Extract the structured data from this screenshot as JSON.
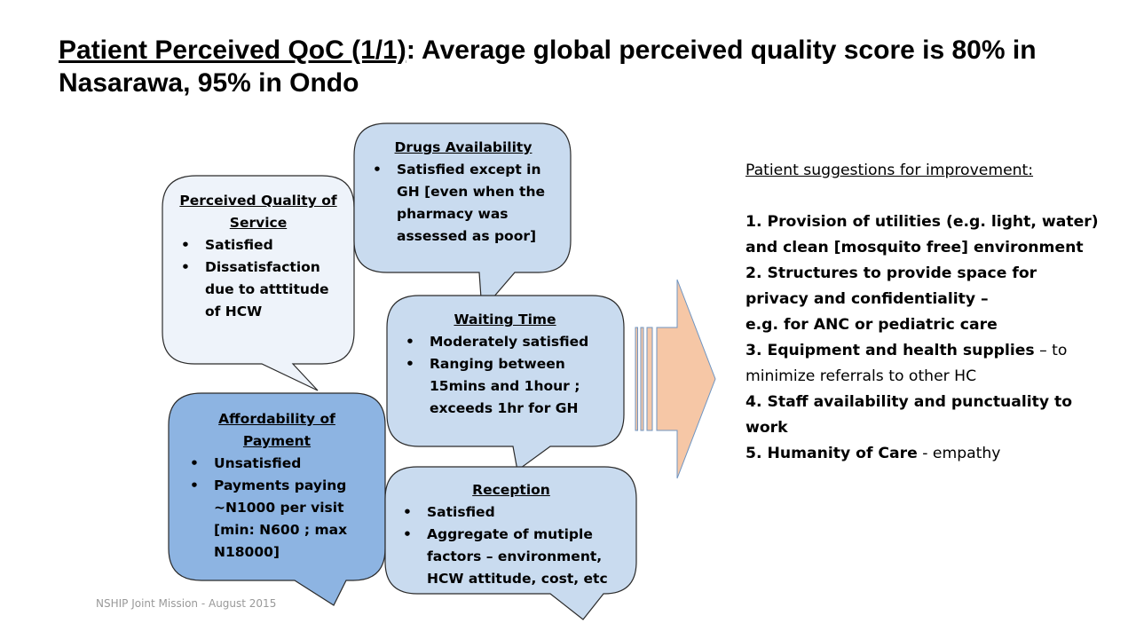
{
  "slide": {
    "title_underlined": "Patient Perceived QoC (1/1)",
    "title_rest": ": Average global perceived quality score is 80% in Nasarawa, 95% in Ondo",
    "footer": "NSHIP Joint Mission - August 2015"
  },
  "callouts": {
    "drugs": {
      "title": "Drugs Availability",
      "items": [
        "Satisfied except in GH [even when the pharmacy was assessed as poor]"
      ]
    },
    "perceived": {
      "title": "Perceived Quality of Service",
      "items": [
        "Satisfied",
        "Dissatisfaction due to atttitude of HCW"
      ]
    },
    "waiting": {
      "title": "Waiting Time",
      "items": [
        "Moderately satisfied",
        "Ranging between 15mins and 1hour ; exceeds 1hr for GH"
      ]
    },
    "affordability": {
      "title": "Affordability of Payment",
      "items": [
        "Unsatisfied",
        "Payments paying ~N1000 per visit [min: N600 ; max N18000]"
      ]
    },
    "reception": {
      "title": "Reception",
      "items": [
        "Satisfied",
        "Aggregate of mutiple factors – environment, HCW attitude, cost, etc"
      ]
    }
  },
  "suggestions": {
    "heading": "Patient suggestions for improvement:",
    "items": [
      {
        "bold": "1. Provision of utilities (e.g. light, water) and clean [mosquito free] environment",
        "normal": ""
      },
      {
        "bold": "2. Structures to provide space for privacy and confidentiality –",
        "normal": ""
      },
      {
        "bold": "e.g. for ANC or pediatric care",
        "normal": ""
      },
      {
        "bold": "3. Equipment and health supplies",
        "normal": " – to minimize referrals to other HC"
      },
      {
        "bold": "4. Staff availability  and punctuality to work",
        "normal": ""
      },
      {
        "bold": "5. Humanity of Care",
        "normal": " - empathy"
      }
    ]
  },
  "colors": {
    "light_fill": "#eef3fa",
    "pale_fill": "#c9dbef",
    "mid_fill": "#8db4e2",
    "outline": "#2b2b2b",
    "arrow_fill": "#f6c7a6",
    "arrow_stroke": "#6f95c2"
  }
}
